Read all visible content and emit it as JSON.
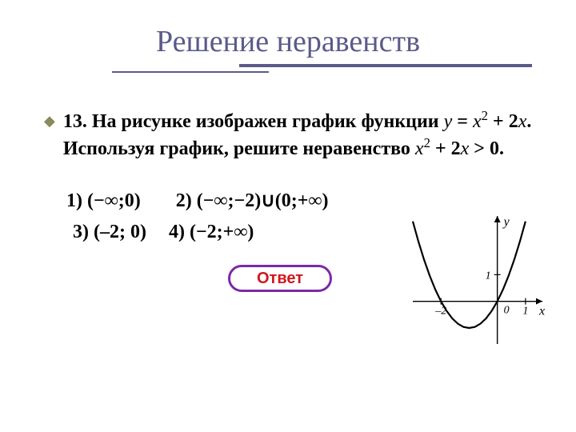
{
  "colors": {
    "title": "#5a5a8a",
    "underline": "#5a5a8a",
    "bullet": "#8a8a5a",
    "text": "#000000",
    "btn_border": "#7a2aa8",
    "btn_text": "#d0181e",
    "btn_bg": "#ffffff",
    "axis": "#000000",
    "curve": "#000000"
  },
  "title": "Решение неравенств",
  "question": {
    "number": "13.",
    "prefix": "На рисунке изображен график функции  ",
    "func_lhs": "y",
    "func_eq": " = ",
    "func_rhs_var": "x",
    "func_rhs_exp": "2",
    "func_rhs_rest": " + 2",
    "func_rhs_var2": "x",
    "middle": ". Используя график, решите неравенство  ",
    "ineq_var": "x",
    "ineq_exp": "2",
    "ineq_rest": " + 2",
    "ineq_var2": "x",
    "ineq_cmp": " > 0."
  },
  "answers": {
    "a1_label": "1)",
    "a1": "(−∞;0)",
    "a2_label": "2)",
    "a2": "(−∞;−2)∪(0;+∞)",
    "a3_label": "3)",
    "a3": "(–2; 0)",
    "a4_label": "4)",
    "a4": "(−2;+∞)"
  },
  "button": {
    "label": "Ответ"
  },
  "graph": {
    "type": "line",
    "xlim": [
      -3,
      1.6
    ],
    "ylim": [
      -1.6,
      3.2
    ],
    "x_ticks": [
      -2,
      0,
      1
    ],
    "x_tick_labels": [
      "–2",
      "0",
      "1"
    ],
    "y_ticks": [
      1
    ],
    "y_tick_labels": [
      "1"
    ],
    "axis_label_x": "x",
    "axis_label_y": "y",
    "curve": {
      "color": "#000000",
      "width": 2.2,
      "points": [
        [
          -3.0,
          3.0
        ],
        [
          -2.8,
          2.24
        ],
        [
          -2.6,
          1.56
        ],
        [
          -2.4,
          0.96
        ],
        [
          -2.2,
          0.44
        ],
        [
          -2.0,
          0.0
        ],
        [
          -1.8,
          -0.36
        ],
        [
          -1.6,
          -0.64
        ],
        [
          -1.4,
          -0.84
        ],
        [
          -1.2,
          -0.96
        ],
        [
          -1.0,
          -1.0
        ],
        [
          -0.8,
          -0.96
        ],
        [
          -0.6,
          -0.84
        ],
        [
          -0.4,
          -0.64
        ],
        [
          -0.2,
          -0.36
        ],
        [
          0.0,
          0.0
        ],
        [
          0.2,
          0.44
        ],
        [
          0.4,
          0.96
        ],
        [
          0.6,
          1.56
        ],
        [
          0.8,
          2.24
        ],
        [
          1.0,
          3.0
        ]
      ]
    },
    "tick_len": 4,
    "font_size": 14,
    "axis_label_font_size": 16
  }
}
